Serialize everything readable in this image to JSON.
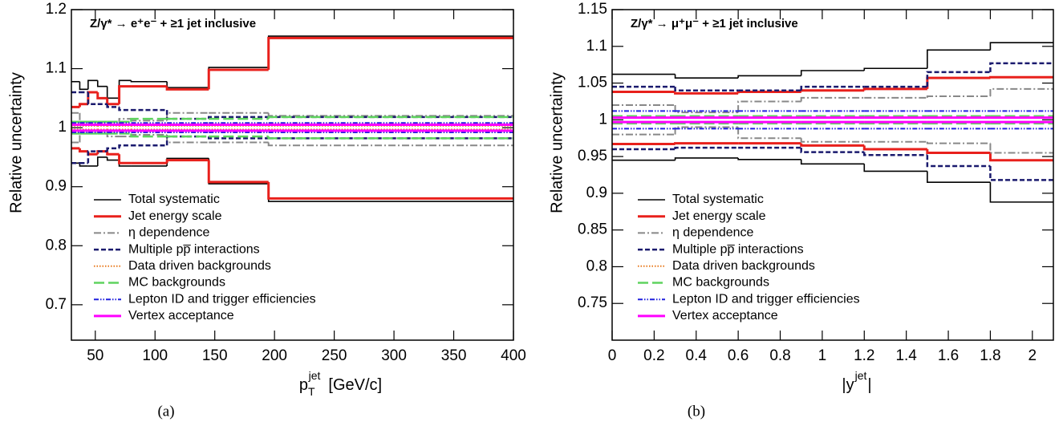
{
  "chart_data": [
    {
      "type": "step",
      "annotation": "Z/γ* → e⁺e⁻  + ≥1 jet inclusive",
      "xlabel": {
        "main": "p",
        "sub": "T",
        "sup": "jet",
        "unit": "[GeV/c]"
      },
      "ylabel": "Relative uncertainty",
      "caption": "(a)",
      "bins": [
        30,
        37,
        44,
        52,
        60,
        70,
        80,
        110,
        145,
        195,
        400
      ],
      "xlim": [
        30,
        400
      ],
      "xticks": [
        50,
        100,
        150,
        200,
        250,
        300,
        350,
        400
      ],
      "ylim": [
        0.64,
        1.2
      ],
      "yticks": [
        0.7,
        0.8,
        0.9,
        1,
        1.1,
        1.2
      ],
      "series": [
        {
          "name": "Total systematic",
          "color": "#000000",
          "style": "solid",
          "upper": [
            1.078,
            1.065,
            1.08,
            1.07,
            1.05,
            1.08,
            1.078,
            1.068,
            1.102,
            1.155
          ],
          "lower": [
            0.94,
            0.935,
            0.935,
            0.95,
            0.945,
            0.935,
            0.935,
            0.948,
            0.905,
            0.875
          ]
        },
        {
          "name": "Jet energy scale",
          "color": "#e8201c",
          "style": "thick",
          "upper": [
            1.035,
            1.04,
            1.06,
            1.05,
            1.04,
            1.07,
            1.07,
            1.065,
            1.098,
            1.152
          ],
          "lower": [
            0.965,
            0.96,
            0.955,
            0.96,
            0.955,
            0.94,
            0.94,
            0.945,
            0.908,
            0.88
          ]
        },
        {
          "name": "η dependence",
          "color": "#888888",
          "style": "dashdot",
          "upper": [
            1.025,
            1.01,
            1.01,
            1.005,
            1.005,
            1.015,
            1.012,
            1.025,
            1.025,
            1.02
          ],
          "lower": [
            0.975,
            0.99,
            0.99,
            0.995,
            0.985,
            0.985,
            0.988,
            0.975,
            0.975,
            0.97
          ]
        },
        {
          "name": "Multiple pp̅ interactions",
          "color": "#1a1a6e",
          "style": "dashed",
          "upper": [
            1.06,
            1.06,
            1.04,
            1.04,
            1.035,
            1.03,
            1.03,
            1.015,
            1.018,
            1.018
          ],
          "lower": [
            0.94,
            0.94,
            0.96,
            0.96,
            0.965,
            0.97,
            0.97,
            0.985,
            0.982,
            0.982
          ]
        },
        {
          "name": "Data driven backgrounds",
          "color": "#e87a1e",
          "style": "dotted",
          "upper": [
            1.003,
            1.003,
            1.003,
            1.003,
            1.003,
            1.003,
            1.003,
            1.003,
            1.003,
            1.003
          ],
          "lower": [
            0.997,
            0.997,
            0.997,
            0.997,
            0.997,
            0.997,
            0.997,
            0.997,
            0.997,
            0.997
          ]
        },
        {
          "name": "MC backgrounds",
          "color": "#5fd35f",
          "style": "longdash",
          "upper": [
            1.01,
            1.01,
            1.01,
            1.01,
            1.01,
            1.01,
            1.015,
            1.015,
            1.015,
            1.018
          ],
          "lower": [
            0.99,
            0.99,
            0.99,
            0.99,
            0.99,
            0.99,
            0.985,
            0.985,
            0.985,
            0.982
          ]
        },
        {
          "name": "Lepton ID and trigger efficiencies",
          "color": "#2222dd",
          "style": "dashdotdot",
          "upper": [
            1.008,
            1.008,
            1.008,
            1.008,
            1.008,
            1.008,
            1.008,
            1.008,
            1.008,
            1.008
          ],
          "lower": [
            0.992,
            0.992,
            0.992,
            0.992,
            0.992,
            0.992,
            0.992,
            0.992,
            0.992,
            0.992
          ]
        },
        {
          "name": "Vertex acceptance",
          "color": "#ff00ff",
          "style": "thick",
          "upper": [
            1.005,
            1.005,
            1.005,
            1.005,
            1.005,
            1.005,
            1.005,
            1.005,
            1.005,
            1.005
          ],
          "lower": [
            0.995,
            0.995,
            0.995,
            0.995,
            0.995,
            0.995,
            0.995,
            0.995,
            0.995,
            0.995
          ]
        }
      ]
    },
    {
      "type": "step",
      "annotation": "Z/γ* → μ⁺μ⁻  + ≥1 jet inclusive",
      "xlabel": {
        "main": "|y",
        "sup": "jet",
        "unit": "|"
      },
      "ylabel": "Relative uncertainty",
      "caption": "(b)",
      "bins": [
        0,
        0.3,
        0.6,
        0.9,
        1.2,
        1.5,
        1.8,
        2.1
      ],
      "xlim": [
        0,
        2.1
      ],
      "xticks": [
        0,
        0.2,
        0.4,
        0.6,
        0.8,
        1,
        1.2,
        1.4,
        1.6,
        1.8,
        2
      ],
      "ylim": [
        0.7,
        1.15
      ],
      "yticks": [
        0.75,
        0.8,
        0.85,
        0.9,
        0.95,
        1,
        1.05,
        1.1,
        1.15
      ],
      "series": [
        {
          "name": "Total systematic",
          "color": "#000000",
          "style": "solid",
          "upper": [
            1.062,
            1.057,
            1.06,
            1.067,
            1.07,
            1.095,
            1.105
          ],
          "lower": [
            0.945,
            0.948,
            0.946,
            0.94,
            0.93,
            0.915,
            0.888
          ]
        },
        {
          "name": "Jet energy scale",
          "color": "#e8201c",
          "style": "thick",
          "upper": [
            1.038,
            1.036,
            1.038,
            1.04,
            1.042,
            1.057,
            1.058
          ],
          "lower": [
            0.967,
            0.968,
            0.968,
            0.965,
            0.96,
            0.955,
            0.945
          ]
        },
        {
          "name": "η dependence",
          "color": "#888888",
          "style": "dashdot",
          "upper": [
            1.02,
            1.01,
            1.025,
            1.03,
            1.03,
            1.032,
            1.042
          ],
          "lower": [
            0.98,
            0.99,
            0.975,
            0.97,
            0.97,
            0.968,
            0.955
          ]
        },
        {
          "name": "Multiple pp̅ interactions",
          "color": "#1a1a6e",
          "style": "dashed",
          "upper": [
            1.045,
            1.04,
            1.04,
            1.045,
            1.045,
            1.065,
            1.077
          ],
          "lower": [
            0.96,
            0.962,
            0.962,
            0.956,
            0.952,
            0.937,
            0.918
          ]
        },
        {
          "name": "Data driven backgrounds",
          "color": "#e87a1e",
          "style": "dotted",
          "upper": [
            1.003,
            1.003,
            1.003,
            1.003,
            1.003,
            1.003,
            1.003
          ],
          "lower": [
            0.997,
            0.997,
            0.997,
            0.997,
            0.997,
            0.997,
            0.997
          ]
        },
        {
          "name": "MC backgrounds",
          "color": "#5fd35f",
          "style": "longdash",
          "upper": [
            1.005,
            1.005,
            1.005,
            1.005,
            1.005,
            1.005,
            1.005
          ],
          "lower": [
            0.995,
            0.995,
            0.995,
            0.995,
            0.995,
            0.995,
            0.995
          ]
        },
        {
          "name": "Lepton ID and trigger efficiencies",
          "color": "#2222dd",
          "style": "dashdotdot",
          "upper": [
            1.012,
            1.012,
            1.012,
            1.012,
            1.012,
            1.012,
            1.012
          ],
          "lower": [
            0.988,
            0.988,
            0.988,
            0.988,
            0.988,
            0.988,
            0.988
          ]
        },
        {
          "name": "Vertex acceptance",
          "color": "#ff00ff",
          "style": "thick",
          "upper": [
            1.003,
            1.003,
            1.003,
            1.003,
            1.003,
            1.003,
            1.003
          ],
          "lower": [
            0.997,
            0.997,
            0.997,
            0.997,
            0.997,
            0.997,
            0.997
          ]
        }
      ]
    }
  ]
}
